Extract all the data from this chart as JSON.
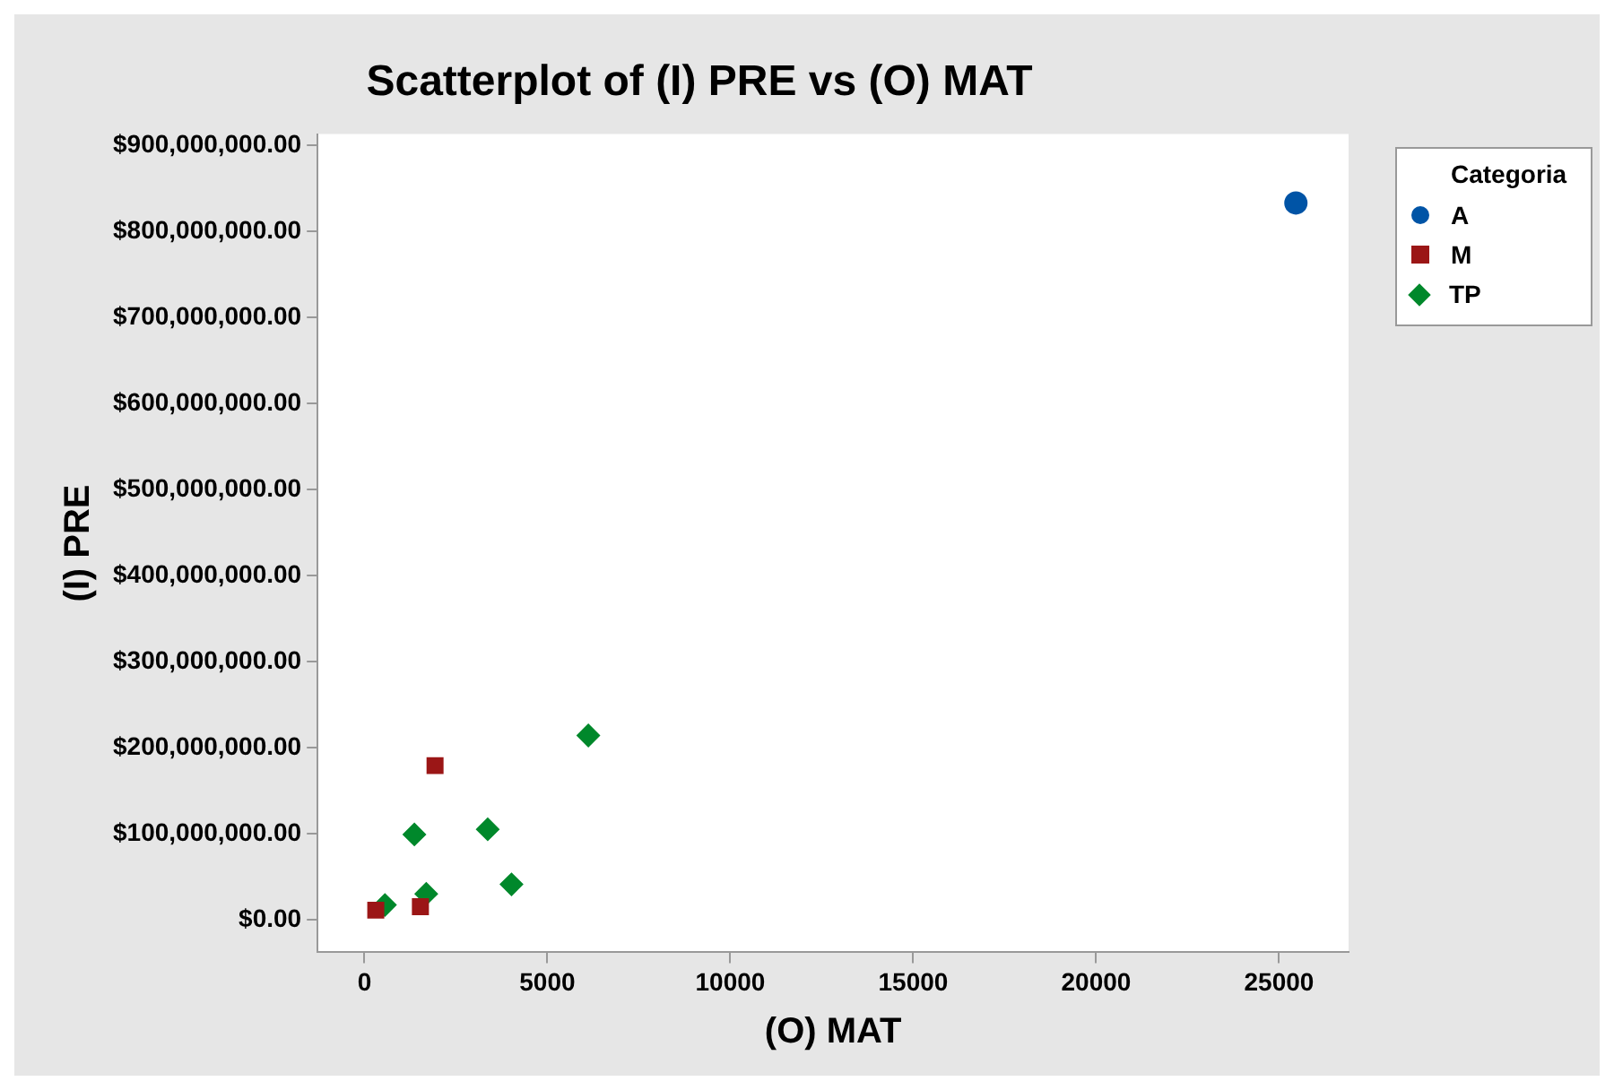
{
  "chart_data": {
    "type": "scatter",
    "title": "Scatterplot of (I) PRE vs (O) MAT",
    "xlabel": "(O) MAT",
    "ylabel": "(I) PRE",
    "legend_title": "Categoria",
    "legend": "top right",
    "grid": false,
    "xlim": [
      -1280,
      26900
    ],
    "xticks": [
      0,
      5000,
      10000,
      15000,
      20000,
      25000
    ],
    "ylim": [
      -38000000,
      913000000
    ],
    "yticks": [
      {
        "value": 0,
        "label": "$0.00"
      },
      {
        "value": 100000000,
        "label": "$100,000,000.00"
      },
      {
        "value": 200000000,
        "label": "$200,000,000.00"
      },
      {
        "value": 300000000,
        "label": "$300,000,000.00"
      },
      {
        "value": 400000000,
        "label": "$400,000,000.00"
      },
      {
        "value": 500000000,
        "label": "$500,000,000.00"
      },
      {
        "value": 600000000,
        "label": "$600,000,000.00"
      },
      {
        "value": 700000000,
        "label": "$700,000,000.00"
      },
      {
        "value": 800000000,
        "label": "$800,000,000.00"
      },
      {
        "value": 900000000,
        "label": "$900,000,000.00"
      }
    ],
    "series": [
      {
        "name": "A",
        "color": "#0054a6",
        "marker": "circle",
        "x": [
          25460
        ],
        "values": [
          833000000
        ]
      },
      {
        "name": "M",
        "color": "#9b1616",
        "marker": "square",
        "x": [
          310,
          1530,
          1930
        ],
        "values": [
          11000000,
          15000000,
          179000000
        ]
      },
      {
        "name": "TP",
        "color": "#00882b",
        "marker": "diamond",
        "x": [
          560,
          1690,
          1365,
          3370,
          4020,
          6120
        ],
        "values": [
          17000000,
          30000000,
          99000000,
          105000000,
          41000000,
          214000000
        ]
      }
    ]
  }
}
